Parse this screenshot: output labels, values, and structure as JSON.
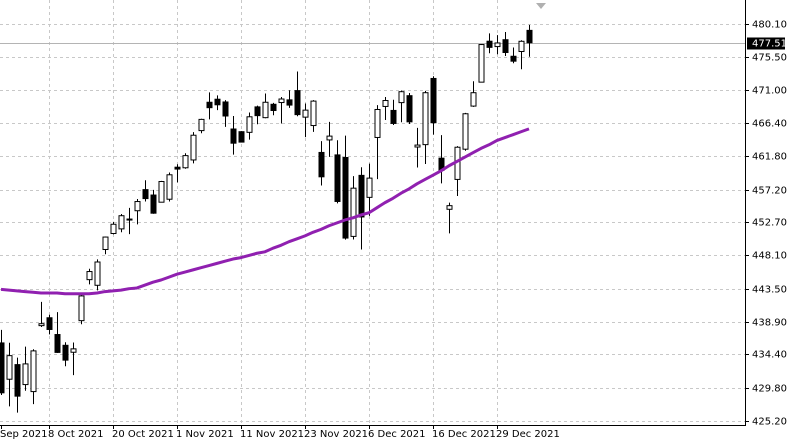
{
  "chart_data": {
    "type": "candlestick",
    "categories": [
      "Sep 2021",
      null,
      null,
      null,
      null,
      null,
      "8 Oct 2021",
      null,
      null,
      null,
      null,
      null,
      null,
      null,
      "20 Oct 2021",
      null,
      null,
      null,
      null,
      null,
      null,
      null,
      "1 Nov 2021",
      null,
      null,
      null,
      null,
      null,
      null,
      null,
      "11 Nov 2021",
      null,
      null,
      null,
      null,
      null,
      null,
      null,
      "23 Nov 2021",
      null,
      null,
      null,
      null,
      null,
      null,
      null,
      "6 Dec 2021",
      null,
      null,
      null,
      null,
      null,
      null,
      null,
      "16 Dec 2021",
      null,
      null,
      null,
      null,
      null,
      null,
      null,
      "29 Dec 2021",
      null,
      null,
      null,
      null
    ],
    "open": [
      436.0,
      430.98,
      433.0,
      430.24,
      429.27,
      438.39,
      439.48,
      437.16,
      435.67,
      434.71,
      439.08,
      444.75,
      443.97,
      448.92,
      451.13,
      451.77,
      453.13,
      454.28,
      457.2,
      456.45,
      455.46,
      455.87,
      460.3,
      460.22,
      461.3,
      465.36,
      469.28,
      469.7,
      469.32,
      465.58,
      465.21,
      465.12,
      468.64,
      467.15,
      469.0,
      469.24,
      469.61,
      470.89,
      467.22,
      466.06,
      462.34,
      464.07,
      462.0,
      461.64,
      450.73,
      459.17,
      456.13,
      464.41,
      468.7,
      468.15,
      469.23,
      470.19,
      463.09,
      463.42,
      472.57,
      461.55,
      454.48,
      458.61,
      462.79,
      468.75,
      472.06,
      477.72,
      476.98,
      477.93,
      475.64,
      476.3,
      479.22
    ],
    "high": [
      437.8,
      436.03,
      433.96,
      435.49,
      435.12,
      441.68,
      439.89,
      440.26,
      436.1,
      436.05,
      442.66,
      446.26,
      447.55,
      450.71,
      452.73,
      453.83,
      454.67,
      455.9,
      458.49,
      457.16,
      458.4,
      459.56,
      460.7,
      462.23,
      465.15,
      467.0,
      470.65,
      470.23,
      469.57,
      467.38,
      465.29,
      467.86,
      468.81,
      470.49,
      469.19,
      470.01,
      470.94,
      473.54,
      469.1,
      469.57,
      463.9,
      466.56,
      464.03,
      464.67,
      459.07,
      460.3,
      460.79,
      468.88,
      470.0,
      469.63,
      470.9,
      470.56,
      465.74,
      470.86,
      472.87,
      464.74,
      455.4,
      463.21,
      467.81,
      472.19,
      477.31,
      478.81,
      478.56,
      479.0,
      476.86,
      477.85,
      479.98
    ],
    "low": [
      428.8,
      427.23,
      426.36,
      429.39,
      427.54,
      438.2,
      437.19,
      434.62,
      432.78,
      431.54,
      438.58,
      444.09,
      443.27,
      448.27,
      451.01,
      451.31,
      451.05,
      452.39,
      455.56,
      453.86,
      455.45,
      455.56,
      458.2,
      460.08,
      460.83,
      464.99,
      466.92,
      468.2,
      465.88,
      462.04,
      463.75,
      464.11,
      466.23,
      467.07,
      467.48,
      466.34,
      468.5,
      467.35,
      464.45,
      465.19,
      457.77,
      461.73,
      455.3,
      450.29,
      450.31,
      448.92,
      453.56,
      458.65,
      466.83,
      466.14,
      466.51,
      466.27,
      460.25,
      460.74,
      464.8,
      458.06,
      451.14,
      456.31,
      462.58,
      468.64,
      472.01,
      476.06,
      475.92,
      475.67,
      474.67,
      473.85,
      475.58
    ],
    "close": [
      429.1,
      434.24,
      428.64,
      433.1,
      434.9,
      438.66,
      437.86,
      434.69,
      433.62,
      435.18,
      442.5,
      445.87,
      447.19,
      450.64,
      452.41,
      453.59,
      453.12,
      455.55,
      455.96,
      453.94,
      458.32,
      459.25,
      460.04,
      461.9,
      464.72,
      466.91,
      468.53,
      468.93,
      467.38,
      463.62,
      463.77,
      467.27,
      467.43,
      469.28,
      468.14,
      469.73,
      468.89,
      467.57,
      468.19,
      469.44,
      458.97,
      464.6,
      455.56,
      450.5,
      457.4,
      453.42,
      458.79,
      468.28,
      469.52,
      466.35,
      470.74,
      466.57,
      463.36,
      470.6,
      466.45,
      459.87,
      454.98,
      463.06,
      467.69,
      470.6,
      477.26,
      476.87,
      477.48,
      476.16,
      474.96,
      477.71,
      477.51
    ],
    "up_color": "#ffffff",
    "down_color": "#000000",
    "outline_color": "#000000",
    "moving_average": {
      "color": "#9020b0",
      "values": [
        443.4,
        443.3,
        443.2,
        443.1,
        443.0,
        442.9,
        442.9,
        442.9,
        442.8,
        442.8,
        442.8,
        442.8,
        442.9,
        443.1,
        443.2,
        443.3,
        443.5,
        443.6,
        444.0,
        444.4,
        444.7,
        445.1,
        445.5,
        445.8,
        446.1,
        446.4,
        446.7,
        447.0,
        447.3,
        447.6,
        447.8,
        448.1,
        448.4,
        448.6,
        449.1,
        449.5,
        450.0,
        450.4,
        450.8,
        451.3,
        451.7,
        452.2,
        452.6,
        453.0,
        453.3,
        453.7,
        454.0,
        454.7,
        455.4,
        456.0,
        456.7,
        457.3,
        458.0,
        458.6,
        459.2,
        459.8,
        460.5,
        461.1,
        461.7,
        462.3,
        462.9,
        463.4,
        464.0,
        464.4,
        464.8,
        465.2,
        465.6
      ]
    },
    "current_price": 477.51,
    "ylim": [
      424.65,
      483.42
    ],
    "yticks": [
      {
        "value": 480.1,
        "label": "480.10"
      },
      {
        "value": 475.5,
        "label": "475.50"
      },
      {
        "value": 471.0,
        "label": "471.00"
      },
      {
        "value": 466.4,
        "label": "466.40"
      },
      {
        "value": 461.8,
        "label": "461.80"
      },
      {
        "value": 457.2,
        "label": "457.20"
      },
      {
        "value": 452.7,
        "label": "452.70"
      },
      {
        "value": 448.1,
        "label": "448.10"
      },
      {
        "value": 443.5,
        "label": "443.50"
      },
      {
        "value": 438.9,
        "label": "438.90"
      },
      {
        "value": 434.4,
        "label": "434.40"
      },
      {
        "value": 429.8,
        "label": "429.80"
      },
      {
        "value": 425.2,
        "label": "425.20"
      }
    ],
    "grid": true
  }
}
